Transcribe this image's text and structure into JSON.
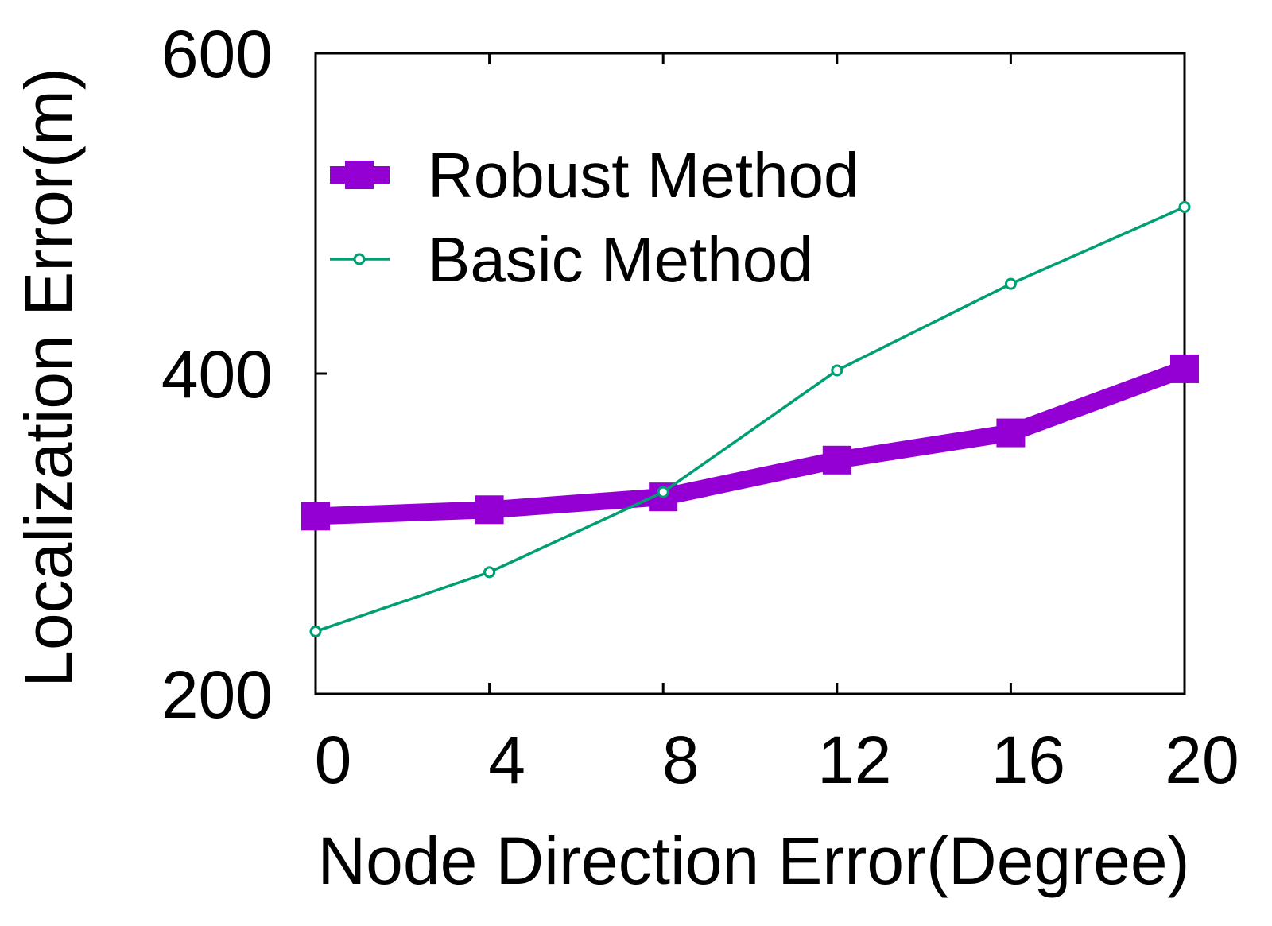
{
  "colors": {
    "robust": "#9400d3",
    "basic": "#009e73",
    "frame": "#000000"
  },
  "chart_data": {
    "type": "line",
    "title": "",
    "xlabel": "Node Direction Error(Degree)",
    "ylabel": "Localization Error(m)",
    "x": [
      0,
      4,
      8,
      12,
      16,
      20
    ],
    "xticks": [
      "0",
      "4",
      "8",
      "12",
      "16",
      "20"
    ],
    "yticks": [
      "200",
      "400",
      "600"
    ],
    "xlim": [
      0,
      20
    ],
    "ylim": [
      200,
      600
    ],
    "grid": false,
    "legend_position": "top-left",
    "series": [
      {
        "name": "Robust Method",
        "values": [
          311,
          315,
          323,
          346,
          363,
          403
        ],
        "marker": "square"
      },
      {
        "name": "Basic Method",
        "values": [
          239,
          276,
          326,
          402,
          456,
          504
        ],
        "marker": "circle"
      }
    ]
  }
}
